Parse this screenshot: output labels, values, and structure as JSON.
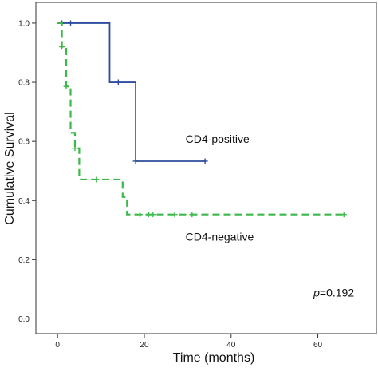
{
  "chart_data": {
    "type": "line",
    "xlabel": "Time (months)",
    "ylabel": "Cumulative Survival",
    "xlim": [
      -5,
      73.5
    ],
    "ylim": [
      -0.05,
      1.07
    ],
    "xticks": [
      0,
      20,
      40,
      60
    ],
    "yticks": [
      0.0,
      0.2,
      0.4,
      0.6,
      0.8,
      1.0
    ],
    "ytick_labels": [
      "0.0",
      "0.2",
      "0.4",
      "0.6",
      "0.8",
      "1.0"
    ],
    "series": [
      {
        "name": "CD4-positive",
        "color": "#2f4d9e",
        "style": "solid",
        "steps": [
          [
            0,
            1.0
          ],
          [
            12,
            0.8
          ],
          [
            18,
            0.533
          ]
        ],
        "end_x": 34,
        "censored": [
          [
            1,
            1.0
          ],
          [
            3,
            1.0
          ],
          [
            14,
            0.8
          ],
          [
            18,
            0.533
          ],
          [
            34,
            0.533
          ]
        ]
      },
      {
        "name": "CD4-negative",
        "color": "#3cb94a",
        "style": "dashed",
        "steps": [
          [
            0,
            1.0
          ],
          [
            1,
            0.92
          ],
          [
            2,
            0.786
          ],
          [
            3,
            0.629
          ],
          [
            4,
            0.577
          ],
          [
            5,
            0.471
          ],
          [
            15,
            0.412
          ],
          [
            16,
            0.353
          ]
        ],
        "end_x": 66,
        "censored": [
          [
            1,
            0.92
          ],
          [
            2,
            0.786
          ],
          [
            4,
            0.577
          ],
          [
            9,
            0.471
          ],
          [
            19,
            0.353
          ],
          [
            21,
            0.353
          ],
          [
            22,
            0.353
          ],
          [
            27,
            0.353
          ],
          [
            31,
            0.353
          ],
          [
            66,
            0.353
          ]
        ]
      }
    ],
    "annotations": [
      {
        "text": "CD4-positive",
        "x": 29.5,
        "y": 0.595
      },
      {
        "text": "CD4-negative",
        "x": 29.5,
        "y": 0.265
      },
      {
        "prefix": "p",
        "text": "=0.192",
        "x": 59,
        "y": 0.075
      }
    ]
  }
}
